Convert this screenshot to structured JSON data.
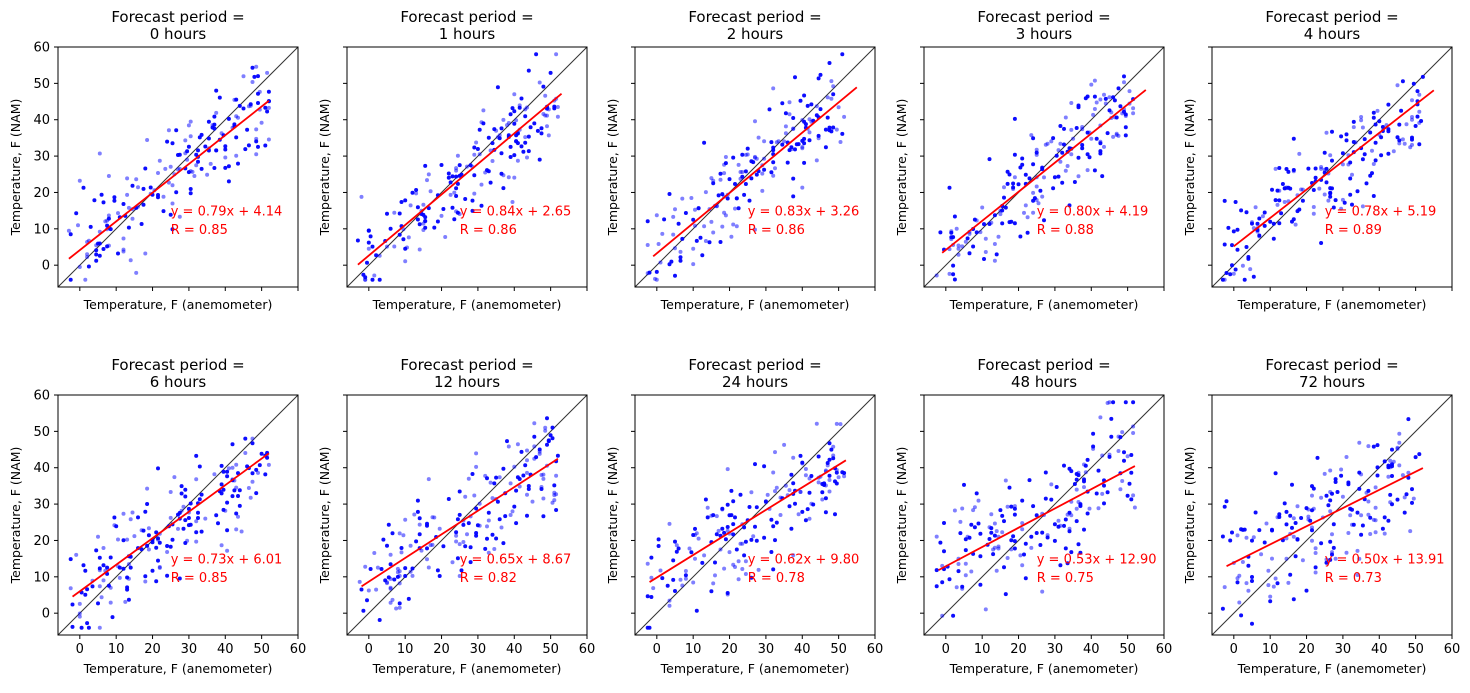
{
  "chart_data": {
    "type": "scatter",
    "layout": {
      "rows": 2,
      "cols": 5
    },
    "shared_axes": {
      "xlim": [
        -6,
        60
      ],
      "ylim": [
        -6,
        60
      ],
      "ticks": [
        0,
        10,
        20,
        30,
        40,
        50,
        60
      ]
    },
    "xlabel": "Temperature, F (anemometer)",
    "ylabel": "Temperature, F (NAM)",
    "colors": {
      "points": "#0000ff",
      "fit_line": "#ff0000",
      "identity_line": "#333333",
      "annotation": "#ff0000"
    },
    "panels": [
      {
        "title_line1": "Forecast period =",
        "title_line2": "0 hours",
        "equation": "y = 0.79x + 4.14",
        "r_label": "R = 0.85",
        "slope": 0.79,
        "intercept": 4.14,
        "fit_x": [
          -3,
          52
        ],
        "r": 0.85
      },
      {
        "title_line1": "Forecast period =",
        "title_line2": "1 hours",
        "equation": "y = 0.84x + 2.65",
        "r_label": "R = 0.86",
        "slope": 0.84,
        "intercept": 2.65,
        "fit_x": [
          -3,
          53
        ],
        "r": 0.86
      },
      {
        "title_line1": "Forecast period =",
        "title_line2": "2 hours",
        "equation": "y = 0.83x + 3.26",
        "r_label": "R = 0.86",
        "slope": 0.83,
        "intercept": 3.26,
        "fit_x": [
          -1,
          55
        ],
        "r": 0.86
      },
      {
        "title_line1": "Forecast period =",
        "title_line2": "3 hours",
        "equation": "y = 0.80x + 4.19",
        "r_label": "R = 0.88",
        "slope": 0.8,
        "intercept": 4.19,
        "fit_x": [
          -1,
          55
        ],
        "r": 0.88
      },
      {
        "title_line1": "Forecast period =",
        "title_line2": "4 hours",
        "equation": "y = 0.78x + 5.19",
        "r_label": "R = 0.89",
        "slope": 0.78,
        "intercept": 5.19,
        "fit_x": [
          0,
          55
        ],
        "r": 0.89
      },
      {
        "title_line1": "Forecast period =",
        "title_line2": "6 hours",
        "equation": "y = 0.73x + 6.01",
        "r_label": "R = 0.85",
        "slope": 0.73,
        "intercept": 6.01,
        "fit_x": [
          -2,
          52
        ],
        "r": 0.85
      },
      {
        "title_line1": "Forecast period =",
        "title_line2": "12 hours",
        "equation": "y = 0.65x + 8.67",
        "r_label": "R = 0.82",
        "slope": 0.65,
        "intercept": 8.67,
        "fit_x": [
          -2,
          52
        ],
        "r": 0.82
      },
      {
        "title_line1": "Forecast period =",
        "title_line2": "24 hours",
        "equation": "y = 0.62x + 9.80",
        "r_label": "R = 0.78",
        "slope": 0.62,
        "intercept": 9.8,
        "fit_x": [
          -2,
          52
        ],
        "r": 0.78
      },
      {
        "title_line1": "Forecast period =",
        "title_line2": "48 hours",
        "equation": "y = 0.53x + 12.90",
        "r_label": "R = 0.75",
        "slope": 0.53,
        "intercept": 12.9,
        "fit_x": [
          -2,
          52
        ],
        "r": 0.75
      },
      {
        "title_line1": "Forecast period =",
        "title_line2": "72 hours",
        "equation": "y = 0.50x + 13.91",
        "r_label": "R = 0.73",
        "slope": 0.5,
        "intercept": 13.91,
        "fit_x": [
          -2,
          52
        ],
        "r": 0.73
      }
    ]
  }
}
